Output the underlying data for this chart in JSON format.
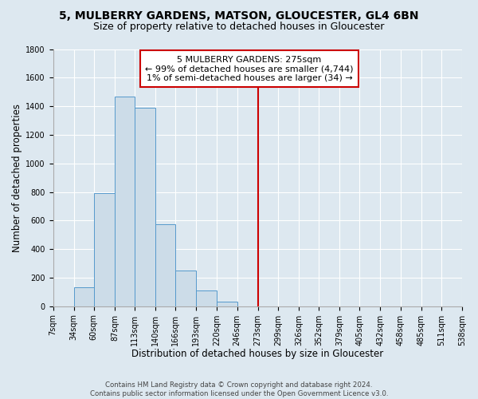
{
  "title": "5, MULBERRY GARDENS, MATSON, GLOUCESTER, GL4 6BN",
  "subtitle": "Size of property relative to detached houses in Gloucester",
  "xlabel": "Distribution of detached houses by size in Gloucester",
  "ylabel": "Number of detached properties",
  "footer_line1": "Contains HM Land Registry data © Crown copyright and database right 2024.",
  "footer_line2": "Contains public sector information licensed under the Open Government Licence v3.0.",
  "bin_labels": [
    "7sqm",
    "34sqm",
    "60sqm",
    "87sqm",
    "113sqm",
    "140sqm",
    "166sqm",
    "193sqm",
    "220sqm",
    "246sqm",
    "273sqm",
    "299sqm",
    "326sqm",
    "352sqm",
    "379sqm",
    "405sqm",
    "432sqm",
    "458sqm",
    "485sqm",
    "511sqm",
    "538sqm"
  ],
  "bar_values": [
    0,
    130,
    790,
    1470,
    1390,
    575,
    250,
    110,
    30,
    0,
    0,
    0,
    0,
    0,
    0,
    0,
    0,
    0,
    0,
    0
  ],
  "bin_edges_numeric": [
    7,
    34,
    60,
    87,
    113,
    140,
    166,
    193,
    220,
    246,
    273,
    299,
    326,
    352,
    379,
    405,
    432,
    458,
    485,
    511,
    538
  ],
  "annotation_line1": "5 MULBERRY GARDENS: 275sqm",
  "annotation_line2": "← 99% of detached houses are smaller (4,744)",
  "annotation_line3": "1% of semi-detached houses are larger (34) →",
  "bar_color": "#ccdce8",
  "bar_edge_color": "#5599cc",
  "ref_line_color": "#cc0000",
  "ref_line_x": 273,
  "background_color": "#dde8f0",
  "plot_bg_color": "#dde8f0",
  "ylim": [
    0,
    1800
  ],
  "yticks": [
    0,
    200,
    400,
    600,
    800,
    1000,
    1200,
    1400,
    1600,
    1800
  ],
  "grid_color": "#ffffff",
  "title_fontsize": 10,
  "subtitle_fontsize": 9,
  "axis_label_fontsize": 8.5,
  "tick_fontsize": 7,
  "annotation_fontsize": 8
}
